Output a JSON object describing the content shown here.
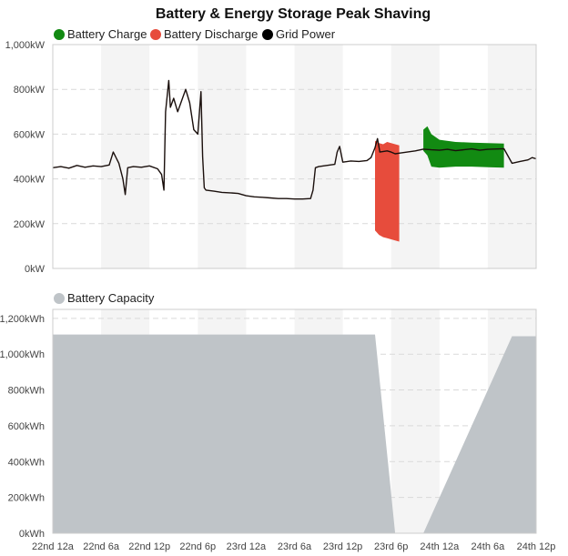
{
  "title": "Battery & Energy Storage Peak Shaving",
  "colors": {
    "charge": "#128a12",
    "discharge": "#e74c3c",
    "grid": "#1a0f0c",
    "capacity": "#bfc4c8",
    "band": "#f4f4f4",
    "gridline": "#d9d9d9",
    "axis": "#cccccc"
  },
  "chart_data": [
    {
      "type": "line",
      "title": "Battery & Energy Storage Peak Shaving",
      "legend": [
        "Battery Charge",
        "Battery Discharge",
        "Grid Power"
      ],
      "legend_position": "top-left",
      "x_unit": "hours since 22nd 12a",
      "x_ticks": [
        "22nd 12a",
        "22nd 6a",
        "22nd 12p",
        "22nd 6p",
        "23rd 12a",
        "23rd 6a",
        "23rd 12p",
        "23rd 6p",
        "24th 12a",
        "24th 6a",
        "24th 12p"
      ],
      "xlim": [
        0,
        60
      ],
      "y_ticks": [
        "0kW",
        "200kW",
        "400kW",
        "600kW",
        "800kW",
        "1,000kW"
      ],
      "ylim": [
        0,
        1000
      ],
      "grid": true,
      "series": [
        {
          "name": "Grid Power",
          "points": [
            [
              0,
              450
            ],
            [
              1,
              455
            ],
            [
              2,
              448
            ],
            [
              3,
              460
            ],
            [
              4,
              452
            ],
            [
              5,
              458
            ],
            [
              6,
              455
            ],
            [
              7,
              462
            ],
            [
              7.5,
              520
            ],
            [
              8.2,
              470
            ],
            [
              8.7,
              400
            ],
            [
              9,
              330
            ],
            [
              9.3,
              450
            ],
            [
              10,
              455
            ],
            [
              11,
              452
            ],
            [
              12,
              458
            ],
            [
              13,
              445
            ],
            [
              13.5,
              420
            ],
            [
              13.8,
              350
            ],
            [
              14,
              700
            ],
            [
              14.4,
              840
            ],
            [
              14.6,
              720
            ],
            [
              15,
              760
            ],
            [
              15.5,
              700
            ],
            [
              16,
              750
            ],
            [
              16.5,
              800
            ],
            [
              17,
              740
            ],
            [
              17.5,
              620
            ],
            [
              18,
              600
            ],
            [
              18.4,
              790
            ],
            [
              18.6,
              500
            ],
            [
              18.8,
              360
            ],
            [
              19,
              350
            ],
            [
              20,
              345
            ],
            [
              21,
              340
            ],
            [
              22,
              338
            ],
            [
              23,
              335
            ],
            [
              24,
              325
            ],
            [
              25,
              320
            ],
            [
              26,
              318
            ],
            [
              27,
              315
            ],
            [
              28,
              312
            ],
            [
              29,
              312
            ],
            [
              30,
              310
            ],
            [
              31,
              310
            ],
            [
              32,
              312
            ],
            [
              32.3,
              350
            ],
            [
              32.6,
              450
            ],
            [
              33,
              455
            ],
            [
              34,
              460
            ],
            [
              35,
              465
            ],
            [
              35.3,
              520
            ],
            [
              35.6,
              545
            ],
            [
              36,
              475
            ],
            [
              37,
              480
            ],
            [
              38,
              478
            ],
            [
              39,
              482
            ],
            [
              39.5,
              495
            ],
            [
              40,
              540
            ],
            [
              40.3,
              580
            ],
            [
              40.6,
              520
            ],
            [
              41.5,
              525
            ],
            [
              42,
              520
            ],
            [
              42.5,
              512
            ],
            [
              43,
              515
            ],
            [
              45,
              525
            ],
            [
              46,
              533
            ],
            [
              47,
              530
            ],
            [
              48,
              528
            ],
            [
              49,
              532
            ],
            [
              50,
              526
            ],
            [
              51,
              530
            ],
            [
              52,
              534
            ],
            [
              53,
              528
            ],
            [
              54,
              532
            ],
            [
              56,
              535
            ],
            [
              57,
              470
            ],
            [
              58,
              478
            ],
            [
              59,
              485
            ],
            [
              59.5,
              495
            ],
            [
              60,
              490
            ]
          ]
        },
        {
          "name": "Battery Discharge",
          "points": [
            [
              40,
              570
            ],
            [
              40.5,
              560
            ],
            [
              41,
              555
            ],
            [
              41.5,
              565
            ],
            [
              42,
              560
            ],
            [
              42.5,
              555
            ],
            [
              43,
              550
            ],
            [
              43,
              120
            ],
            [
              42.5,
              125
            ],
            [
              42,
              130
            ],
            [
              41.5,
              135
            ],
            [
              41,
              140
            ],
            [
              40.5,
              150
            ],
            [
              40,
              170
            ]
          ]
        },
        {
          "name": "Battery Charge",
          "points": [
            [
              46,
              620
            ],
            [
              46.5,
              635
            ],
            [
              47,
              600
            ],
            [
              48,
              575
            ],
            [
              50,
              565
            ],
            [
              52,
              562
            ],
            [
              54,
              560
            ],
            [
              56,
              558
            ],
            [
              56,
              450
            ],
            [
              54,
              452
            ],
            [
              52,
              455
            ],
            [
              50,
              455
            ],
            [
              48,
              450
            ],
            [
              47,
              455
            ],
            [
              46.5,
              505
            ],
            [
              46,
              525
            ]
          ]
        }
      ]
    },
    {
      "type": "area",
      "legend": [
        "Battery Capacity"
      ],
      "legend_position": "top-left",
      "x_unit": "hours since 22nd 12a",
      "xlim": [
        0,
        60
      ],
      "y_ticks": [
        "0kWh",
        "200kWh",
        "400kWh",
        "600kWh",
        "800kWh",
        "1,000kWh",
        "1,200kWh"
      ],
      "ylim": [
        0,
        1250
      ],
      "grid": true,
      "series": [
        {
          "name": "Battery Capacity",
          "points": [
            [
              0,
              1110
            ],
            [
              40,
              1110
            ],
            [
              42.5,
              0
            ],
            [
              46,
              0
            ],
            [
              57,
              1100
            ],
            [
              60,
              1100
            ]
          ]
        }
      ]
    }
  ]
}
